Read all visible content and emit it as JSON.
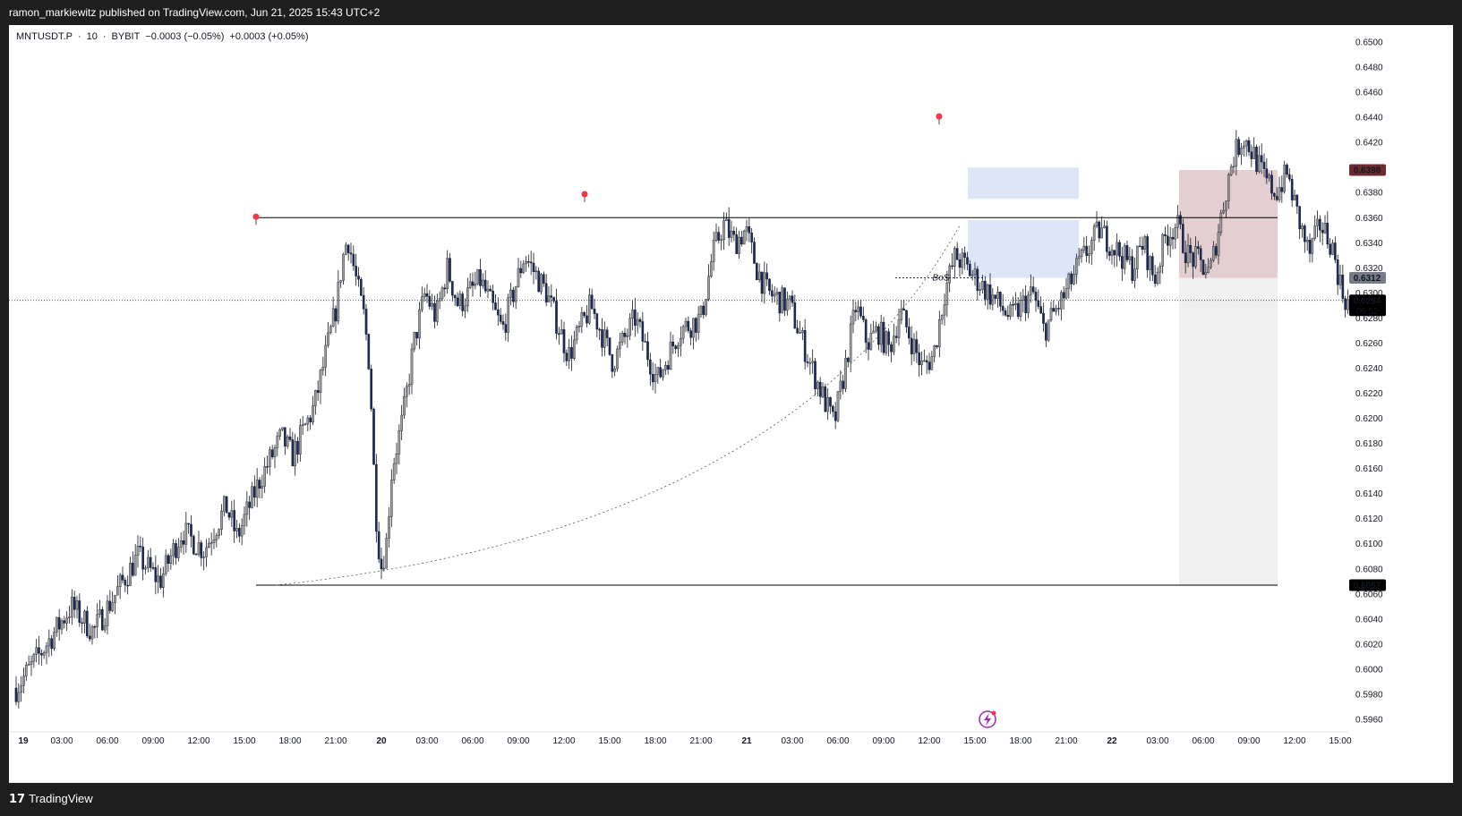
{
  "header": {
    "publisher_text": "ramon_markiewitz published on TradingView.com, Jun 21, 2025 15:43 UTC+2"
  },
  "symbol": {
    "name": "MNTUSDT.P",
    "interval": "10",
    "exchange": "BYBIT",
    "change": "−0.0003 (−0.05%)",
    "change2": "+0.0003 (+0.05%)"
  },
  "footer": {
    "brand": "TradingView",
    "logo_glyph": "17"
  },
  "chart_data": {
    "type": "candlestick",
    "ylim": [
      0.595,
      0.651
    ],
    "y_ticks": [
      "0.6500",
      "0.6480",
      "0.6460",
      "0.6440",
      "0.6420",
      "0.6400",
      "0.6380",
      "0.6360",
      "0.6340",
      "0.6320",
      "0.6300",
      "0.6280",
      "0.6260",
      "0.6240",
      "0.6220",
      "0.6200",
      "0.6180",
      "0.6160",
      "0.6140",
      "0.6120",
      "0.6100",
      "0.6080",
      "0.6060",
      "0.6040",
      "0.6020",
      "0.6000",
      "0.5980",
      "0.5960"
    ],
    "x_ticks": [
      {
        "label": "19",
        "bold": true
      },
      {
        "label": "03:00"
      },
      {
        "label": "06:00"
      },
      {
        "label": "09:00"
      },
      {
        "label": "12:00"
      },
      {
        "label": "15:00"
      },
      {
        "label": "18:00"
      },
      {
        "label": "21:00"
      },
      {
        "label": "20",
        "bold": true
      },
      {
        "label": "03:00"
      },
      {
        "label": "06:00"
      },
      {
        "label": "09:00"
      },
      {
        "label": "12:00"
      },
      {
        "label": "15:00"
      },
      {
        "label": "18:00"
      },
      {
        "label": "21:00"
      },
      {
        "label": "21",
        "bold": true
      },
      {
        "label": "03:00"
      },
      {
        "label": "06:00"
      },
      {
        "label": "09:00"
      },
      {
        "label": "12:00"
      },
      {
        "label": "15:00"
      },
      {
        "label": "18:00"
      },
      {
        "label": "21:00"
      },
      {
        "label": "22",
        "bold": true
      },
      {
        "label": "03:00"
      },
      {
        "label": "06:00"
      },
      {
        "label": "09:00"
      },
      {
        "label": "12:00"
      },
      {
        "label": "15:00"
      }
    ],
    "price_path": [
      [
        0,
        0.5985
      ],
      [
        4,
        0.601
      ],
      [
        10,
        0.605
      ],
      [
        14,
        0.603
      ],
      [
        18,
        0.606
      ],
      [
        22,
        0.609
      ],
      [
        26,
        0.607
      ],
      [
        30,
        0.611
      ],
      [
        34,
        0.6095
      ],
      [
        38,
        0.613
      ],
      [
        40,
        0.6105
      ],
      [
        44,
        0.615
      ],
      [
        48,
        0.6185
      ],
      [
        50,
        0.617
      ],
      [
        54,
        0.621
      ],
      [
        56,
        0.625
      ],
      [
        58,
        0.629
      ],
      [
        59,
        0.6325
      ],
      [
        60,
        0.6345
      ],
      [
        62,
        0.63
      ],
      [
        63,
        0.628
      ],
      [
        64,
        0.624
      ],
      [
        65,
        0.613
      ],
      [
        66,
        0.608
      ],
      [
        67,
        0.61
      ],
      [
        68,
        0.616
      ],
      [
        70,
        0.62
      ],
      [
        72,
        0.626
      ],
      [
        74,
        0.63
      ],
      [
        76,
        0.628
      ],
      [
        78,
        0.632
      ],
      [
        80,
        0.629
      ],
      [
        84,
        0.631
      ],
      [
        88,
        0.627
      ],
      [
        92,
        0.633
      ],
      [
        96,
        0.63
      ],
      [
        100,
        0.625
      ],
      [
        104,
        0.629
      ],
      [
        108,
        0.6245
      ],
      [
        112,
        0.628
      ],
      [
        116,
        0.623
      ],
      [
        120,
        0.627
      ],
      [
        124,
        0.628
      ],
      [
        126,
        0.633
      ],
      [
        128,
        0.6355
      ],
      [
        130,
        0.634
      ],
      [
        132,
        0.635
      ],
      [
        134,
        0.632
      ],
      [
        136,
        0.63
      ],
      [
        140,
        0.629
      ],
      [
        144,
        0.624
      ],
      [
        148,
        0.6195
      ],
      [
        150,
        0.624
      ],
      [
        152,
        0.629
      ],
      [
        154,
        0.626
      ],
      [
        156,
        0.627
      ],
      [
        158,
        0.6255
      ],
      [
        160,
        0.6285
      ],
      [
        164,
        0.624
      ],
      [
        166,
        0.625
      ],
      [
        168,
        0.63
      ],
      [
        170,
        0.633
      ],
      [
        172,
        0.632
      ],
      [
        176,
        0.63
      ],
      [
        180,
        0.628
      ],
      [
        184,
        0.63
      ],
      [
        186,
        0.627
      ],
      [
        190,
        0.63
      ],
      [
        192,
        0.632
      ],
      [
        194,
        0.6335
      ],
      [
        196,
        0.635
      ],
      [
        198,
        0.634
      ],
      [
        200,
        0.633
      ],
      [
        202,
        0.632
      ],
      [
        204,
        0.634
      ],
      [
        206,
        0.631
      ],
      [
        208,
        0.6345
      ],
      [
        210,
        0.6355
      ],
      [
        212,
        0.633
      ],
      [
        214,
        0.6325
      ],
      [
        216,
        0.6315
      ],
      [
        218,
        0.636
      ],
      [
        220,
        0.6405
      ],
      [
        222,
        0.6425
      ],
      [
        224,
        0.641
      ],
      [
        226,
        0.639
      ],
      [
        228,
        0.638
      ],
      [
        230,
        0.6395
      ],
      [
        232,
        0.636
      ],
      [
        234,
        0.633
      ],
      [
        236,
        0.6355
      ],
      [
        238,
        0.634
      ],
      [
        240,
        0.63
      ],
      [
        241,
        0.6292
      ]
    ],
    "swing_highs": [
      0.636,
      0.6378,
      0.644
    ],
    "levels": {
      "resistance": 0.636,
      "low": 0.6067,
      "bos": 0.6312
    },
    "annotation": "BoS",
    "price_labels": {
      "target": "0.6398",
      "entry": "0.6312",
      "stop": "0.6067",
      "current": "0.6294",
      "countdown": "06:52"
    },
    "zones": {
      "fvg1": [
        0.6375,
        0.64
      ],
      "fvg2": [
        0.6312,
        0.6358
      ],
      "risk_box": [
        0.6312,
        0.6398
      ],
      "reward_box": [
        0.6067,
        0.6312
      ]
    },
    "colors": {
      "up": "#9e9e9e",
      "down": "#1b2a5e",
      "resistance": "#000000",
      "swing_dot": "#f23645",
      "fvg": "#dde6f7",
      "risk": "#e3cfd1",
      "reward": "#f0f0f0",
      "bos_text": "#f23645",
      "label_target_bg": "#6d2b2f",
      "label_entry_bg": "#787b86",
      "label_stop_bg": "#000000"
    }
  }
}
